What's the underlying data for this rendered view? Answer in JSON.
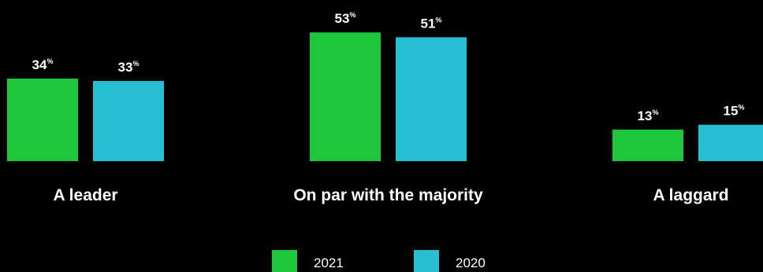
{
  "chart_data": {
    "type": "bar",
    "categories": [
      "A leader",
      "On par with the majority",
      "A laggard"
    ],
    "value_suffix": "%",
    "series": [
      {
        "name": "2021",
        "color": "#1ec73c",
        "values": [
          34,
          53,
          13
        ]
      },
      {
        "name": "2020",
        "color": "#29bfd3",
        "values": [
          33,
          51,
          15
        ]
      }
    ],
    "legend_position": "bottom-center",
    "grid": false,
    "ylim": [
      0,
      55
    ]
  }
}
